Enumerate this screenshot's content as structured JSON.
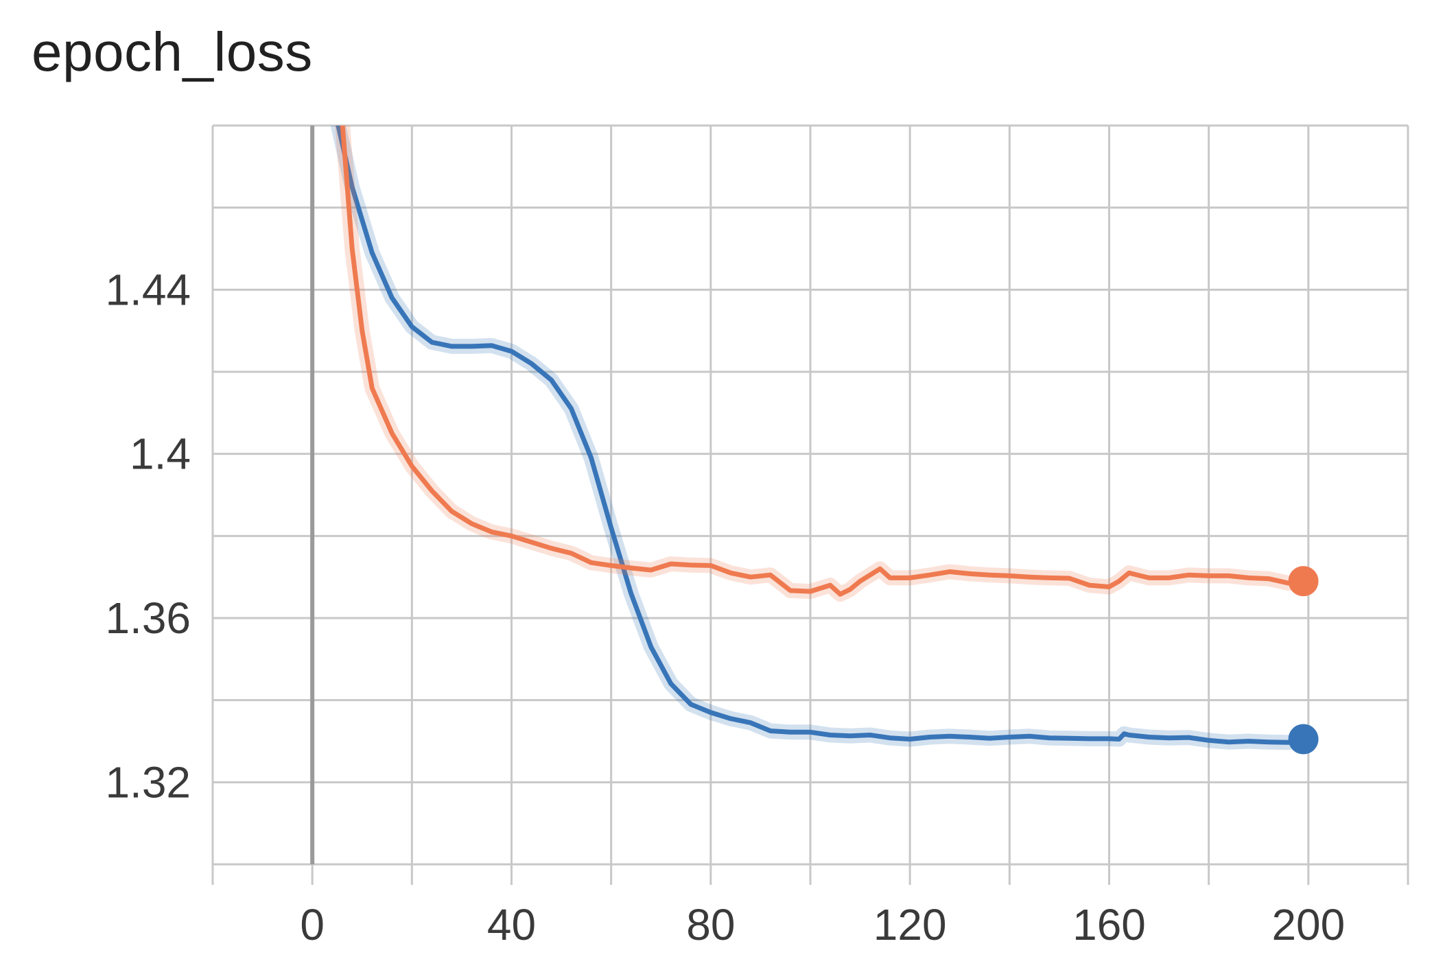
{
  "chart_data": {
    "type": "line",
    "title": "epoch_loss",
    "xlabel": "",
    "ylabel": "",
    "xlim": [
      -20,
      220
    ],
    "ylim": [
      1.3,
      1.48
    ],
    "x_ticks": [
      0,
      40,
      80,
      120,
      160,
      200
    ],
    "x_tick_labels": [
      "0",
      "40",
      "80",
      "120",
      "160",
      "200"
    ],
    "y_ticks": [
      1.32,
      1.36,
      1.4,
      1.44
    ],
    "y_tick_labels": [
      "1.32",
      "1.36",
      "1.4",
      "1.44"
    ],
    "grid": true,
    "legend": "none",
    "colors": {
      "series_blue": "#3875b8",
      "series_orange": "#ef7a50"
    },
    "series": [
      {
        "color": "#3875b8",
        "x": [
          5,
          8,
          12,
          16,
          20,
          24,
          28,
          32,
          36,
          40,
          44,
          48,
          52,
          56,
          60,
          64,
          68,
          72,
          76,
          80,
          84,
          88,
          92,
          96,
          100,
          104,
          108,
          112,
          116,
          120,
          124,
          128,
          132,
          136,
          140,
          144,
          148,
          152,
          156,
          160,
          162,
          163,
          164,
          168,
          172,
          176,
          180,
          184,
          188,
          192,
          196,
          199
        ],
        "values": [
          1.481,
          1.465,
          1.449,
          1.438,
          1.431,
          1.4272,
          1.4262,
          1.4262,
          1.4264,
          1.425,
          1.422,
          1.418,
          1.411,
          1.399,
          1.382,
          1.366,
          1.353,
          1.344,
          1.339,
          1.337,
          1.3355,
          1.3345,
          1.3325,
          1.3322,
          1.3322,
          1.3315,
          1.3313,
          1.3315,
          1.3308,
          1.3305,
          1.331,
          1.3312,
          1.331,
          1.3307,
          1.331,
          1.3312,
          1.3308,
          1.3307,
          1.3306,
          1.3306,
          1.3305,
          1.3318,
          1.3315,
          1.331,
          1.3308,
          1.3309,
          1.3302,
          1.3298,
          1.33,
          1.3298,
          1.3297,
          1.3305
        ]
      },
      {
        "color": "#ef7a50",
        "x": [
          6,
          8,
          10,
          12,
          16,
          20,
          24,
          28,
          32,
          36,
          40,
          44,
          48,
          52,
          56,
          60,
          64,
          68,
          72,
          76,
          80,
          84,
          88,
          92,
          96,
          100,
          104,
          106,
          108,
          110,
          112,
          114,
          116,
          120,
          124,
          128,
          132,
          136,
          140,
          144,
          148,
          152,
          156,
          160,
          162,
          164,
          168,
          172,
          176,
          180,
          184,
          188,
          192,
          196,
          199
        ],
        "values": [
          1.481,
          1.45,
          1.43,
          1.416,
          1.405,
          1.397,
          1.391,
          1.386,
          1.383,
          1.381,
          1.38,
          1.3785,
          1.377,
          1.3758,
          1.3735,
          1.3728,
          1.3722,
          1.3717,
          1.3732,
          1.3729,
          1.3728,
          1.371,
          1.37,
          1.3705,
          1.3667,
          1.3665,
          1.368,
          1.3658,
          1.367,
          1.369,
          1.3705,
          1.372,
          1.3698,
          1.3698,
          1.3705,
          1.3713,
          1.3708,
          1.3705,
          1.3703,
          1.37,
          1.3698,
          1.3697,
          1.368,
          1.3676,
          1.369,
          1.371,
          1.3698,
          1.3698,
          1.3705,
          1.3703,
          1.3703,
          1.3698,
          1.3696,
          1.3685,
          1.369
        ]
      }
    ]
  }
}
